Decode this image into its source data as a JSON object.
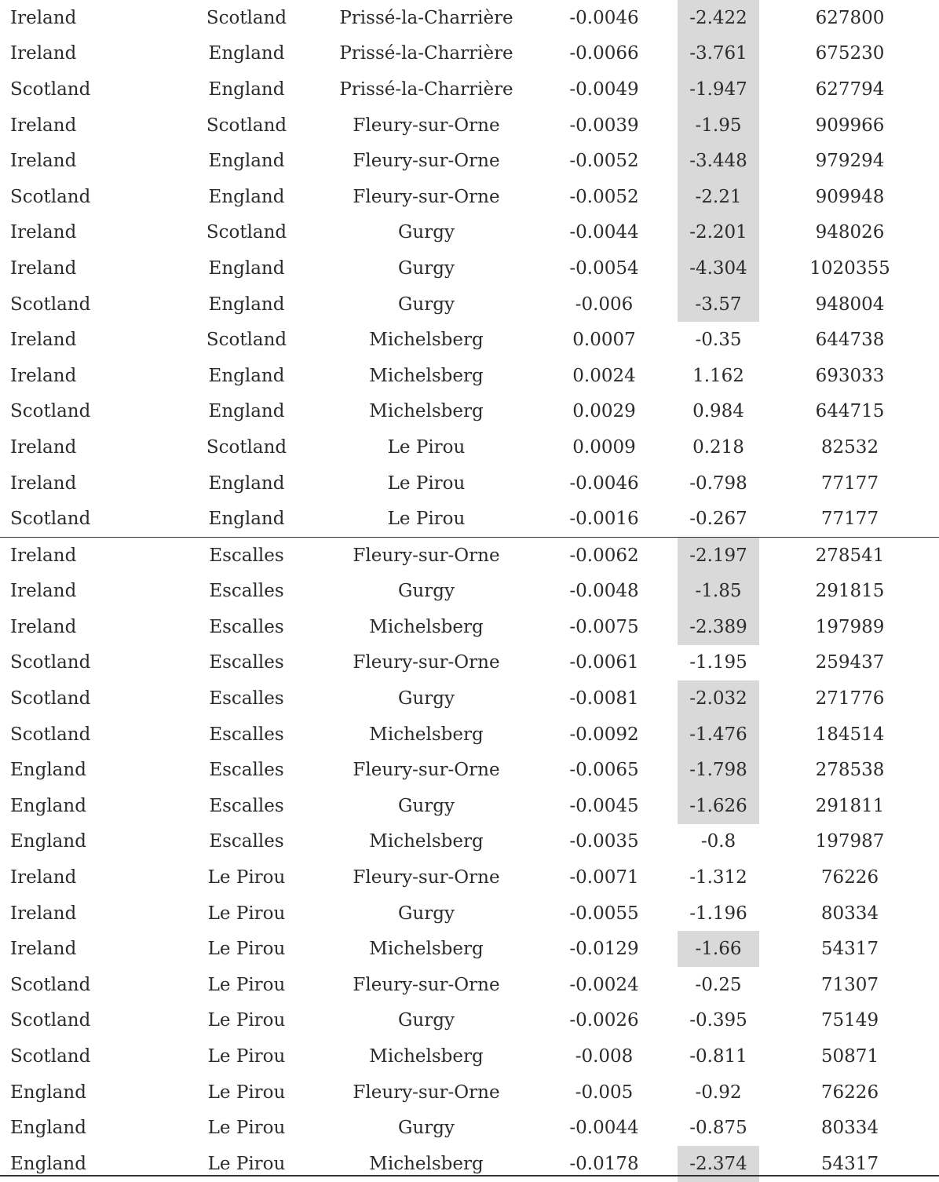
{
  "table": {
    "rows": [
      {
        "pop1": "Ireland",
        "pop2": "Scotland",
        "pop3": "Prissé-la-Charrière",
        "f4": "-0.0046",
        "z": "-2.422",
        "snps": "627800",
        "highlight": true
      },
      {
        "pop1": "Ireland",
        "pop2": "England",
        "pop3": "Prissé-la-Charrière",
        "f4": "-0.0066",
        "z": "-3.761",
        "snps": "675230",
        "highlight": true
      },
      {
        "pop1": "Scotland",
        "pop2": "England",
        "pop3": "Prissé-la-Charrière",
        "f4": "-0.0049",
        "z": "-1.947",
        "snps": "627794",
        "highlight": true
      },
      {
        "pop1": "Ireland",
        "pop2": "Scotland",
        "pop3": "Fleury-sur-Orne",
        "f4": "-0.0039",
        "z": "-1.95",
        "snps": "909966",
        "highlight": true
      },
      {
        "pop1": "Ireland",
        "pop2": "England",
        "pop3": "Fleury-sur-Orne",
        "f4": "-0.0052",
        "z": "-3.448",
        "snps": "979294",
        "highlight": true
      },
      {
        "pop1": "Scotland",
        "pop2": "England",
        "pop3": "Fleury-sur-Orne",
        "f4": "-0.0052",
        "z": "-2.21",
        "snps": "909948",
        "highlight": true
      },
      {
        "pop1": "Ireland",
        "pop2": "Scotland",
        "pop3": "Gurgy",
        "f4": "-0.0044",
        "z": "-2.201",
        "snps": "948026",
        "highlight": true
      },
      {
        "pop1": "Ireland",
        "pop2": "England",
        "pop3": "Gurgy",
        "f4": "-0.0054",
        "z": "-4.304",
        "snps": "1020355",
        "highlight": true
      },
      {
        "pop1": "Scotland",
        "pop2": "England",
        "pop3": "Gurgy",
        "f4": "-0.006",
        "z": "-3.57",
        "snps": "948004",
        "highlight": true
      },
      {
        "pop1": "Ireland",
        "pop2": "Scotland",
        "pop3": "Michelsberg",
        "f4": "0.0007",
        "z": "-0.35",
        "snps": "644738",
        "highlight": false
      },
      {
        "pop1": "Ireland",
        "pop2": "England",
        "pop3": "Michelsberg",
        "f4": "0.0024",
        "z": "1.162",
        "snps": "693033",
        "highlight": false
      },
      {
        "pop1": "Scotland",
        "pop2": "England",
        "pop3": "Michelsberg",
        "f4": "0.0029",
        "z": "0.984",
        "snps": "644715",
        "highlight": false
      },
      {
        "pop1": "Ireland",
        "pop2": "Scotland",
        "pop3": "Le Pirou",
        "f4": "0.0009",
        "z": "0.218",
        "snps": "82532",
        "highlight": false
      },
      {
        "pop1": "Ireland",
        "pop2": "England",
        "pop3": "Le Pirou",
        "f4": "-0.0046",
        "z": "-0.798",
        "snps": "77177",
        "highlight": false
      },
      {
        "pop1": "Scotland",
        "pop2": "England",
        "pop3": "Le Pirou",
        "f4": "-0.0016",
        "z": "-0.267",
        "snps": "77177",
        "highlight": false
      },
      {
        "pop1": "Ireland",
        "pop2": "Escalles",
        "pop3": "Fleury-sur-Orne",
        "f4": "-0.0062",
        "z": "-2.197",
        "snps": "278541",
        "highlight": true,
        "block_start": true
      },
      {
        "pop1": "Ireland",
        "pop2": "Escalles",
        "pop3": "Gurgy",
        "f4": "-0.0048",
        "z": "-1.85",
        "snps": "291815",
        "highlight": true
      },
      {
        "pop1": "Ireland",
        "pop2": "Escalles",
        "pop3": "Michelsberg",
        "f4": "-0.0075",
        "z": "-2.389",
        "snps": "197989",
        "highlight": true
      },
      {
        "pop1": "Scotland",
        "pop2": "Escalles",
        "pop3": "Fleury-sur-Orne",
        "f4": "-0.0061",
        "z": "-1.195",
        "snps": "259437",
        "highlight": false
      },
      {
        "pop1": "Scotland",
        "pop2": "Escalles",
        "pop3": "Gurgy",
        "f4": "-0.0081",
        "z": "-2.032",
        "snps": "271776",
        "highlight": true
      },
      {
        "pop1": "Scotland",
        "pop2": "Escalles",
        "pop3": "Michelsberg",
        "f4": "-0.0092",
        "z": "-1.476",
        "snps": "184514",
        "highlight": true
      },
      {
        "pop1": "England",
        "pop2": "Escalles",
        "pop3": "Fleury-sur-Orne",
        "f4": "-0.0065",
        "z": "-1.798",
        "snps": "278538",
        "highlight": true
      },
      {
        "pop1": "England",
        "pop2": "Escalles",
        "pop3": "Gurgy",
        "f4": "-0.0045",
        "z": "-1.626",
        "snps": "291811",
        "highlight": true
      },
      {
        "pop1": "England",
        "pop2": "Escalles",
        "pop3": "Michelsberg",
        "f4": "-0.0035",
        "z": "-0.8",
        "snps": "197987",
        "highlight": false
      },
      {
        "pop1": "Ireland",
        "pop2": "Le Pirou",
        "pop3": "Fleury-sur-Orne",
        "f4": "-0.0071",
        "z": "-1.312",
        "snps": "76226",
        "highlight": false
      },
      {
        "pop1": "Ireland",
        "pop2": "Le Pirou",
        "pop3": "Gurgy",
        "f4": "-0.0055",
        "z": "-1.196",
        "snps": "80334",
        "highlight": false
      },
      {
        "pop1": "Ireland",
        "pop2": "Le Pirou",
        "pop3": "Michelsberg",
        "f4": "-0.0129",
        "z": "-1.66",
        "snps": "54317",
        "highlight": true
      },
      {
        "pop1": "Scotland",
        "pop2": "Le Pirou",
        "pop3": "Fleury-sur-Orne",
        "f4": "-0.0024",
        "z": "-0.25",
        "snps": "71307",
        "highlight": false
      },
      {
        "pop1": "Scotland",
        "pop2": "Le Pirou",
        "pop3": "Gurgy",
        "f4": "-0.0026",
        "z": "-0.395",
        "snps": "75149",
        "highlight": false
      },
      {
        "pop1": "Scotland",
        "pop2": "Le Pirou",
        "pop3": "Michelsberg",
        "f4": "-0.008",
        "z": "-0.811",
        "snps": "50871",
        "highlight": false
      },
      {
        "pop1": "England",
        "pop2": "Le Pirou",
        "pop3": "Fleury-sur-Orne",
        "f4": "-0.005",
        "z": "-0.92",
        "snps": "76226",
        "highlight": false
      },
      {
        "pop1": "England",
        "pop2": "Le Pirou",
        "pop3": "Gurgy",
        "f4": "-0.0044",
        "z": "-0.875",
        "snps": "80334",
        "highlight": false
      },
      {
        "pop1": "England",
        "pop2": "Le Pirou",
        "pop3": "Michelsberg",
        "f4": "-0.0178",
        "z": "-2.374",
        "snps": "54317",
        "highlight": true
      }
    ]
  }
}
